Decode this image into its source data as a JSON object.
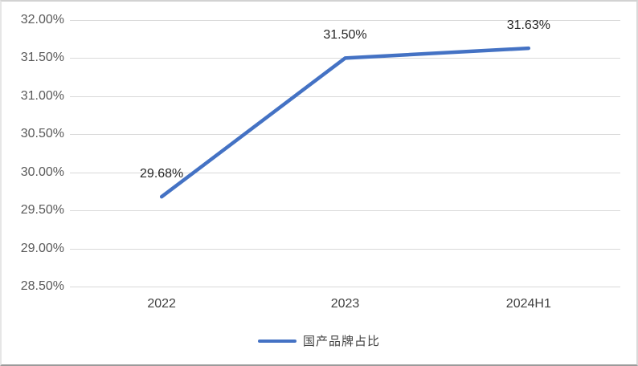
{
  "chart_data": {
    "type": "line",
    "title": "",
    "categories": [
      "2022",
      "2023",
      "2024H1"
    ],
    "series": [
      {
        "name": "国产品牌占比",
        "values": [
          29.68,
          31.5,
          31.63
        ]
      }
    ],
    "data_labels": [
      "29.68%",
      "31.50%",
      "31.63%"
    ],
    "y_ticks": [
      "32.00%",
      "31.50%",
      "31.00%",
      "30.50%",
      "30.00%",
      "29.50%",
      "29.00%",
      "28.50%"
    ],
    "ylim": [
      28.5,
      32.0
    ],
    "y_step": 0.5,
    "xlabel": "",
    "ylabel": "",
    "grid": "horizontal",
    "legend_position": "bottom",
    "legend_label": "国产品牌占比",
    "colors": {
      "line": "#4472C4",
      "gridline": "#D9D9D9",
      "axis_text": "#595959",
      "data_label_text": "#262626"
    }
  }
}
